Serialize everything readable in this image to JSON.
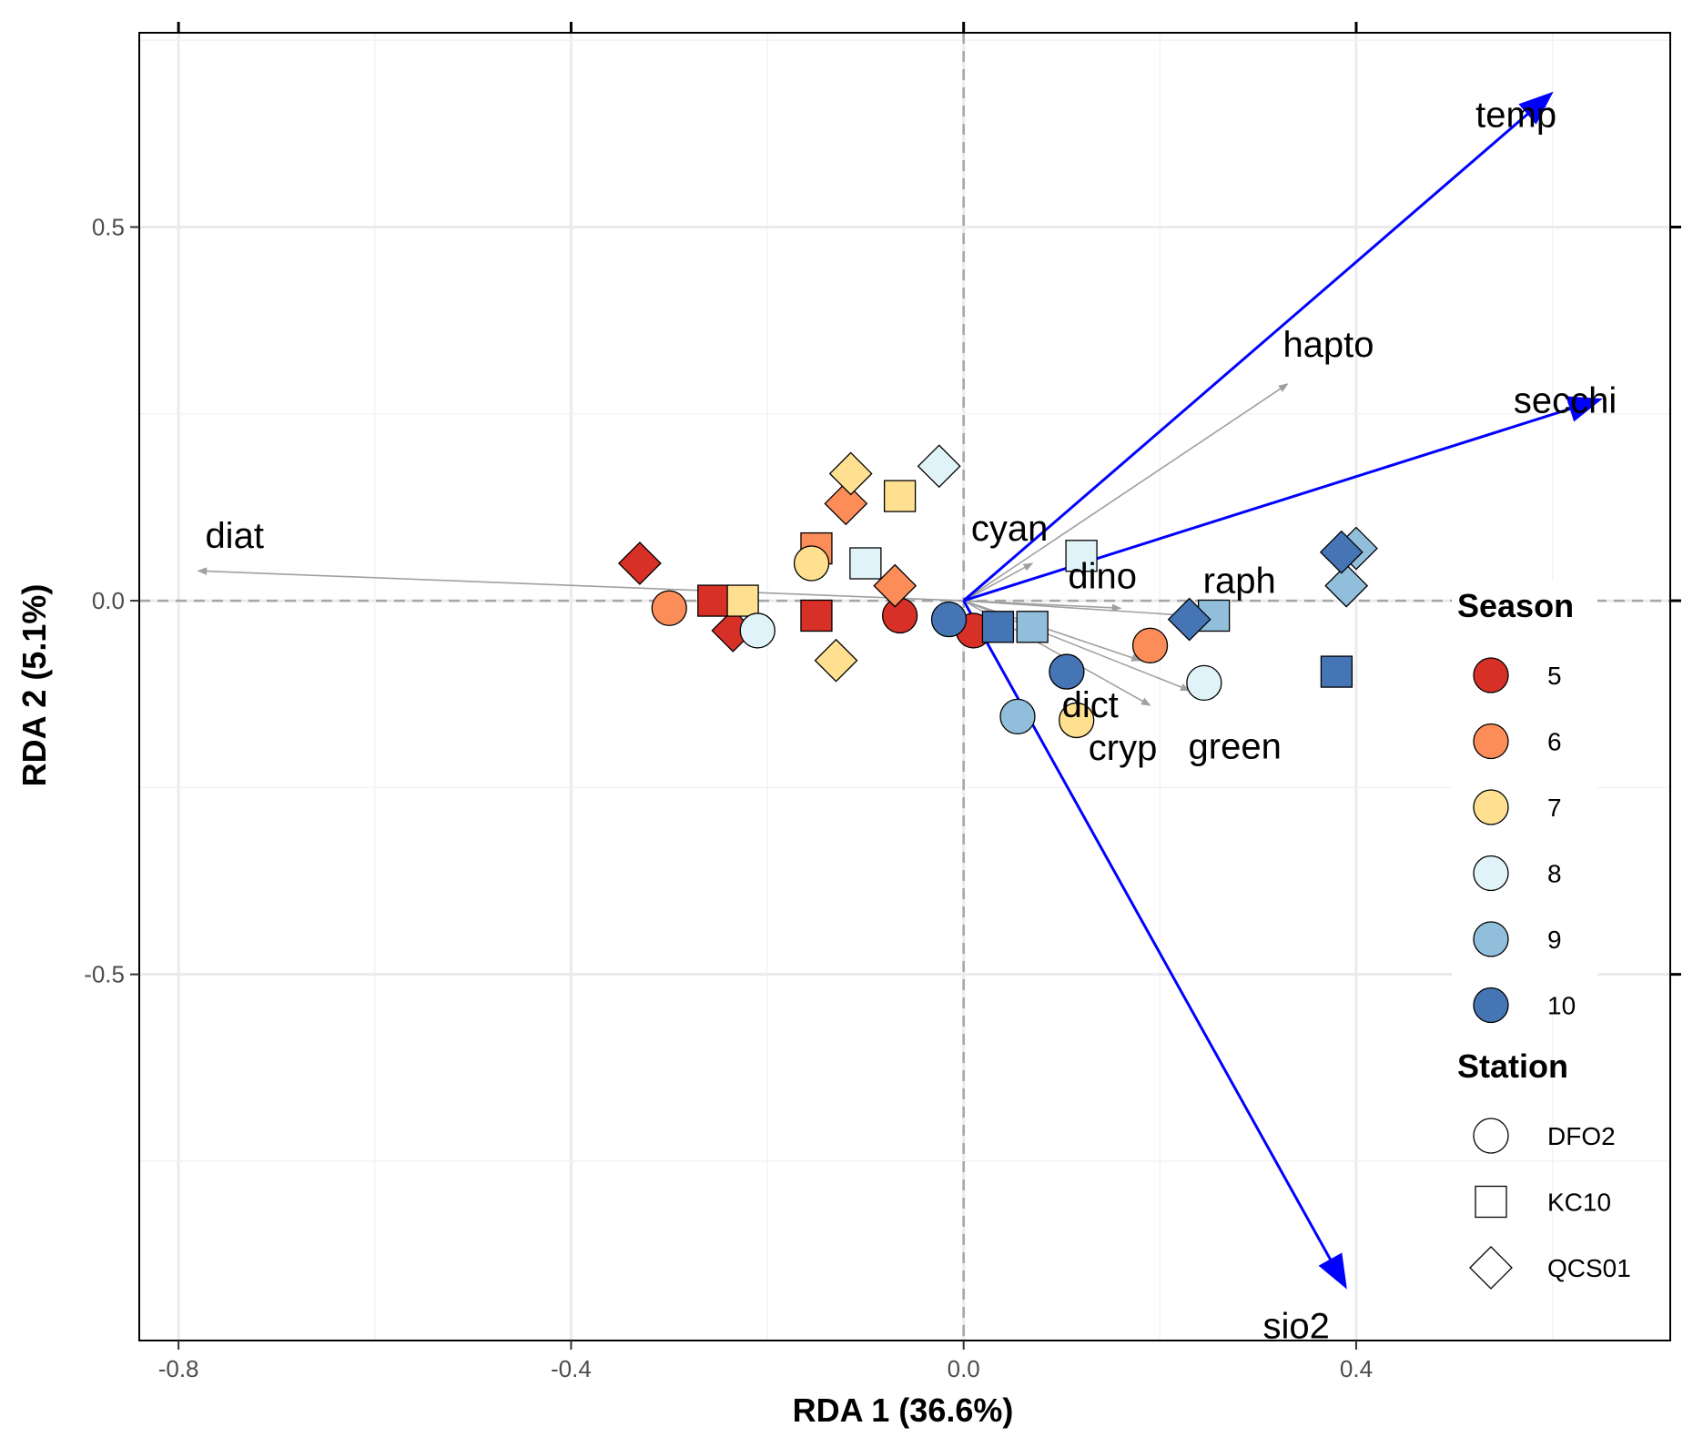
{
  "chart_data": {
    "type": "scatter",
    "subtype": "rda-biplot",
    "title": "",
    "xlabel": "RDA 1 (36.6%)",
    "ylabel": "RDA 2 (5.1%)",
    "xlim": [
      -0.84,
      0.72
    ],
    "ylim": [
      -0.99,
      0.76
    ],
    "xticks": [
      -0.8,
      -0.4,
      0.0,
      0.4
    ],
    "xtick_labels": [
      "-0.8",
      "-0.4",
      "0.0",
      "0.4"
    ],
    "yticks": [
      -0.5,
      0.0,
      0.5
    ],
    "ytick_labels": [
      "-0.5",
      "0.0",
      "0.5"
    ],
    "grid": true,
    "reference_lines": "dashed at x=0 and y=0",
    "season_colors": {
      "5": "#d73027",
      "6": "#fc8d59",
      "7": "#fee090",
      "8": "#e0f3f8",
      "9": "#91bfdb",
      "10": "#4575b4"
    },
    "env_vectors": [
      {
        "label": "temp",
        "x": 0.6,
        "y": 0.68
      },
      {
        "label": "secchi",
        "x": 0.65,
        "y": 0.27
      },
      {
        "label": "sio2",
        "x": 0.39,
        "y": -0.92
      }
    ],
    "env_vector_color": "#0000ff",
    "species_vectors": [
      {
        "label": "diat",
        "x": -0.78,
        "y": 0.04
      },
      {
        "label": "hapto",
        "x": 0.33,
        "y": 0.29
      },
      {
        "label": "cyan",
        "x": 0.07,
        "y": 0.05
      },
      {
        "label": "dino",
        "x": 0.16,
        "y": -0.01
      },
      {
        "label": "raph",
        "x": 0.23,
        "y": -0.02
      },
      {
        "label": "dict",
        "x": 0.18,
        "y": -0.08
      },
      {
        "label": "cryp",
        "x": 0.19,
        "y": -0.14
      },
      {
        "label": "green",
        "x": 0.23,
        "y": -0.12
      }
    ],
    "species_vector_color": "#a0a0a0",
    "points": [
      {
        "x": -0.33,
        "y": 0.05,
        "season": "5",
        "station": "QCS01"
      },
      {
        "x": -0.15,
        "y": -0.02,
        "season": "5",
        "station": "KC10"
      },
      {
        "x": -0.065,
        "y": -0.02,
        "season": "5",
        "station": "DFO2"
      },
      {
        "x": 0.01,
        "y": -0.04,
        "season": "5",
        "station": "DFO2"
      },
      {
        "x": -0.255,
        "y": 0.0,
        "season": "5",
        "station": "KC10"
      },
      {
        "x": -0.235,
        "y": -0.04,
        "season": "5",
        "station": "QCS01"
      },
      {
        "x": -0.3,
        "y": -0.01,
        "season": "6",
        "station": "DFO2"
      },
      {
        "x": -0.15,
        "y": 0.07,
        "season": "6",
        "station": "KC10"
      },
      {
        "x": -0.12,
        "y": 0.13,
        "season": "6",
        "station": "QCS01"
      },
      {
        "x": -0.07,
        "y": 0.02,
        "season": "6",
        "station": "QCS01"
      },
      {
        "x": 0.19,
        "y": -0.06,
        "season": "6",
        "station": "DFO2"
      },
      {
        "x": -0.115,
        "y": 0.17,
        "season": "7",
        "station": "QCS01"
      },
      {
        "x": -0.065,
        "y": 0.14,
        "season": "7",
        "station": "KC10"
      },
      {
        "x": -0.155,
        "y": 0.05,
        "season": "7",
        "station": "DFO2"
      },
      {
        "x": -0.13,
        "y": -0.08,
        "season": "7",
        "station": "QCS01"
      },
      {
        "x": -0.225,
        "y": 0.0,
        "season": "7",
        "station": "KC10"
      },
      {
        "x": 0.115,
        "y": -0.16,
        "season": "7",
        "station": "DFO2"
      },
      {
        "x": -0.025,
        "y": 0.18,
        "season": "8",
        "station": "QCS01"
      },
      {
        "x": -0.1,
        "y": 0.05,
        "season": "8",
        "station": "KC10"
      },
      {
        "x": -0.21,
        "y": -0.04,
        "season": "8",
        "station": "DFO2"
      },
      {
        "x": 0.12,
        "y": 0.06,
        "season": "8",
        "station": "KC10"
      },
      {
        "x": 0.245,
        "y": -0.11,
        "season": "8",
        "station": "DFO2"
      },
      {
        "x": 0.055,
        "y": -0.155,
        "season": "9",
        "station": "DFO2"
      },
      {
        "x": 0.07,
        "y": -0.035,
        "season": "9",
        "station": "KC10"
      },
      {
        "x": 0.255,
        "y": -0.02,
        "season": "9",
        "station": "KC10"
      },
      {
        "x": 0.4,
        "y": 0.07,
        "season": "9",
        "station": "QCS01"
      },
      {
        "x": 0.39,
        "y": 0.02,
        "season": "9",
        "station": "QCS01"
      },
      {
        "x": -0.015,
        "y": -0.025,
        "season": "10",
        "station": "DFO2"
      },
      {
        "x": 0.035,
        "y": -0.035,
        "season": "10",
        "station": "KC10"
      },
      {
        "x": 0.105,
        "y": -0.095,
        "season": "10",
        "station": "DFO2"
      },
      {
        "x": 0.23,
        "y": -0.025,
        "season": "10",
        "station": "QCS01"
      },
      {
        "x": 0.385,
        "y": 0.065,
        "season": "10",
        "station": "QCS01"
      },
      {
        "x": 0.38,
        "y": -0.095,
        "season": "10",
        "station": "KC10"
      }
    ],
    "legend": {
      "placement": "right",
      "season_title": "Season",
      "season_entries": [
        "5",
        "6",
        "7",
        "8",
        "9",
        "10"
      ],
      "station_title": "Station",
      "station_entries": [
        {
          "label": "DFO2",
          "shape": "circle"
        },
        {
          "label": "KC10",
          "shape": "square"
        },
        {
          "label": "QCS01",
          "shape": "diamond"
        }
      ]
    }
  }
}
